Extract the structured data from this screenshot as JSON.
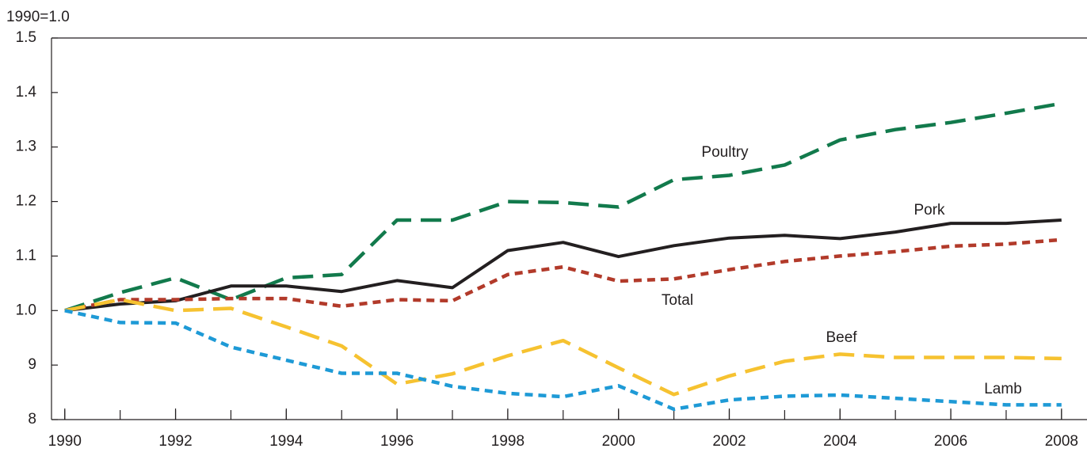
{
  "chart_data": {
    "type": "line",
    "y_label": "1990=1.0",
    "x": [
      1990,
      1991,
      1992,
      1993,
      1994,
      1995,
      1996,
      1997,
      1998,
      1999,
      2000,
      2001,
      2002,
      2003,
      2004,
      2005,
      2006,
      2007,
      2008
    ],
    "series": [
      {
        "name": "Poultry",
        "color": "#127a4c",
        "style": "dashed",
        "values": [
          1.0,
          1.033,
          1.06,
          1.02,
          1.06,
          1.066,
          1.166,
          1.166,
          1.2,
          1.198,
          1.19,
          1.24,
          1.248,
          1.267,
          1.313,
          1.332,
          1.345,
          1.362,
          1.38
        ]
      },
      {
        "name": "Pork",
        "color": "#231f20",
        "style": "solid",
        "values": [
          1.0,
          1.012,
          1.018,
          1.045,
          1.045,
          1.035,
          1.055,
          1.042,
          1.11,
          1.125,
          1.099,
          1.119,
          1.133,
          1.138,
          1.132,
          1.144,
          1.16,
          1.16,
          1.166
        ]
      },
      {
        "name": "Total",
        "color": "#b23a2a",
        "style": "dotted",
        "values": [
          1.0,
          1.02,
          1.02,
          1.022,
          1.022,
          1.008,
          1.02,
          1.018,
          1.066,
          1.08,
          1.054,
          1.058,
          1.075,
          1.09,
          1.1,
          1.108,
          1.118,
          1.122,
          1.13
        ]
      },
      {
        "name": "Beef",
        "color": "#f6c230",
        "style": "dashed",
        "values": [
          1.0,
          1.02,
          1.0,
          1.004,
          0.97,
          0.935,
          0.865,
          0.884,
          0.917,
          0.945,
          0.895,
          0.846,
          0.88,
          0.907,
          0.92,
          0.914,
          0.914,
          0.914,
          0.912
        ]
      },
      {
        "name": "Lamb",
        "color": "#1e9ad6",
        "style": "dotted",
        "values": [
          1.0,
          0.978,
          0.977,
          0.933,
          0.909,
          0.885,
          0.885,
          0.861,
          0.848,
          0.842,
          0.862,
          0.819,
          0.836,
          0.843,
          0.845,
          0.839,
          0.833,
          0.827,
          0.827
        ]
      }
    ],
    "xlim": [
      1989.76,
      2008.46
    ],
    "xticks": [
      1990,
      1992,
      1994,
      1996,
      1998,
      2000,
      2002,
      2004,
      2006,
      2008
    ],
    "ylim": [
      0.8,
      1.5
    ],
    "yticks": [
      1.5,
      1.4,
      1.3,
      1.2,
      1.1,
      {
        "value": 1.0,
        "label": "1.0"
      },
      {
        "value": 0.9,
        "label": "9"
      },
      {
        "value": 0.8,
        "label": "8"
      }
    ],
    "grid": false
  }
}
